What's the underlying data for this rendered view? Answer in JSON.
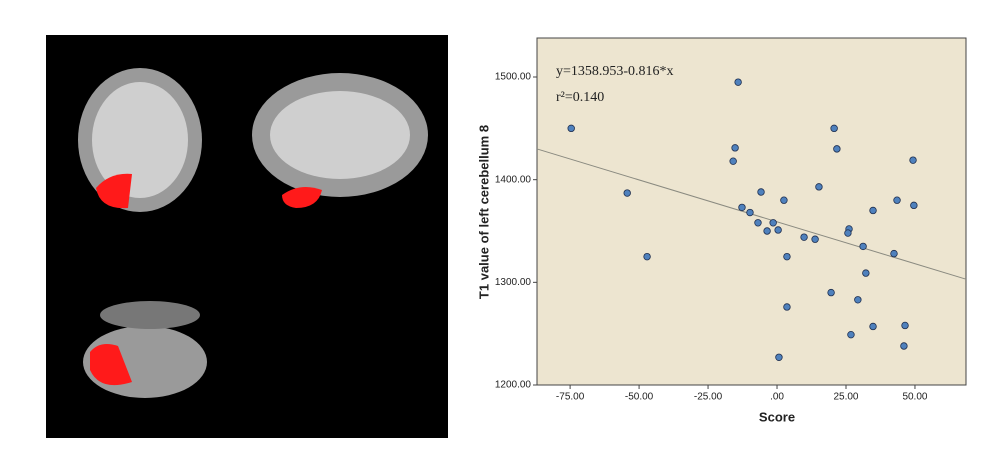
{
  "chart_data": {
    "type": "scatter",
    "x_label": "Score",
    "y_label": "T1 value of left cerebellum 8",
    "annotations": [
      "y=1358.953-0.816*x",
      "r²=0.140"
    ],
    "fit_line": {
      "intercept": 1358.953,
      "slope": -0.816
    },
    "xlim": [
      -87,
      68.5
    ],
    "ylim": [
      1200,
      1538
    ],
    "xticks": [
      {
        "value": -75,
        "label": "-75.00"
      },
      {
        "value": -50,
        "label": "-50.00"
      },
      {
        "value": -25,
        "label": "-25.00"
      },
      {
        "value": 0,
        "label": ".00"
      },
      {
        "value": 25,
        "label": "25.00"
      },
      {
        "value": 50,
        "label": "50.00"
      }
    ],
    "yticks": [
      {
        "value": 1200,
        "label": "1200.00"
      },
      {
        "value": 1300,
        "label": "1300.00"
      },
      {
        "value": 1400,
        "label": "1400.00"
      },
      {
        "value": 1500,
        "label": "1500.00"
      }
    ],
    "background": "#ede5d0",
    "color": "#4f81bd",
    "x": [
      -74.6,
      -54.3,
      -47.1,
      -14.1,
      -15.2,
      -15.9,
      -12.7,
      -9.8,
      -5.8,
      -6.9,
      -3.6,
      -1.4,
      0.4,
      2.5,
      3.6,
      3.6,
      0.7,
      9.8,
      13.8,
      15.2,
      20.7,
      21.7,
      19.6,
      26.1,
      25.7,
      26.8,
      29.3,
      31.2,
      32.2,
      34.8,
      34.8,
      42.4,
      43.5,
      46.4,
      46.0,
      49.3,
      49.6
    ],
    "y": [
      1450,
      1387,
      1325,
      1495,
      1431,
      1418,
      1373,
      1368,
      1388,
      1358,
      1350,
      1358,
      1351,
      1380,
      1325,
      1276,
      1227,
      1344,
      1342,
      1393,
      1450,
      1430,
      1290,
      1352,
      1348,
      1249,
      1283,
      1335,
      1309,
      1370,
      1257,
      1328,
      1380,
      1258,
      1238,
      1419,
      1375
    ]
  }
}
